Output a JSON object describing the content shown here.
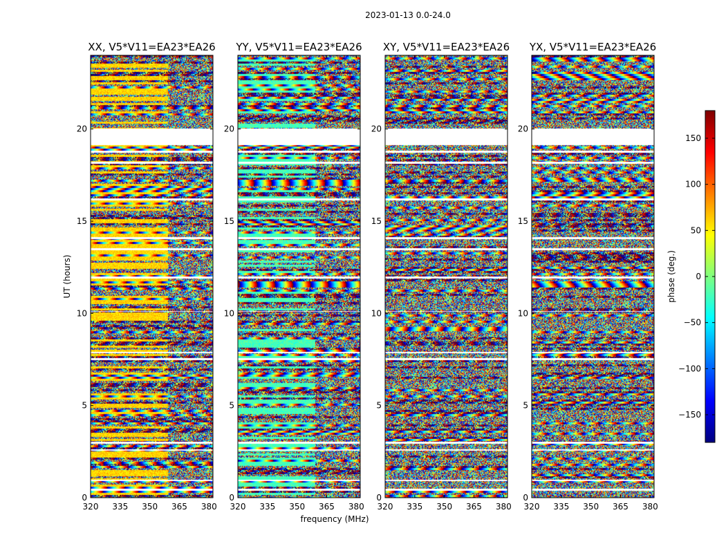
{
  "chart_data": {
    "type": "heatmap",
    "suptitle": "2023-01-13 0.0-24.0",
    "xlabel": "frequency (MHz)",
    "ylabel": "UT (hours)",
    "xlim": [
      320,
      382
    ],
    "ylim": [
      0,
      24
    ],
    "xticks": [
      "320",
      "335",
      "350",
      "365",
      "380"
    ],
    "yticks": [
      "0",
      "5",
      "10",
      "15",
      "20"
    ],
    "panels": [
      {
        "title": "XX, V5*V11=EA23*EA26",
        "base_phase": 60
      },
      {
        "title": "YY, V5*V11=EA23*EA26",
        "base_phase": -20
      },
      {
        "title": "XY, V5*V11=EA23*EA26",
        "base_phase": null
      },
      {
        "title": "YX, V5*V11=EA23*EA26",
        "base_phase": null
      }
    ],
    "flagged_ut_ranges": [
      [
        0.4,
        0.5
      ],
      [
        0.9,
        1.0
      ],
      [
        2.55,
        2.65
      ],
      [
        2.95,
        3.05
      ],
      [
        7.5,
        7.6
      ],
      [
        7.85,
        7.95
      ],
      [
        10.1,
        10.15
      ],
      [
        11.9,
        12.0
      ],
      [
        13.45,
        13.55
      ],
      [
        14.05,
        14.15
      ],
      [
        16.15,
        16.25
      ],
      [
        18.15,
        18.25
      ],
      [
        18.75,
        18.85
      ],
      [
        19.15,
        20.05
      ]
    ],
    "colorbar": {
      "label": "phase (deg.)",
      "min": -180,
      "max": 180,
      "ticks": [
        "150",
        "100",
        "50",
        "0",
        "−50",
        "−100",
        "−150"
      ],
      "tick_values": [
        150,
        100,
        50,
        0,
        -50,
        -100,
        -150
      ],
      "colormap": "jet",
      "colors": [
        "#00007f",
        "#0000ff",
        "#007fff",
        "#00ffff",
        "#7fff7f",
        "#ffff00",
        "#ff7f00",
        "#ff0000",
        "#7f0000"
      ]
    }
  }
}
